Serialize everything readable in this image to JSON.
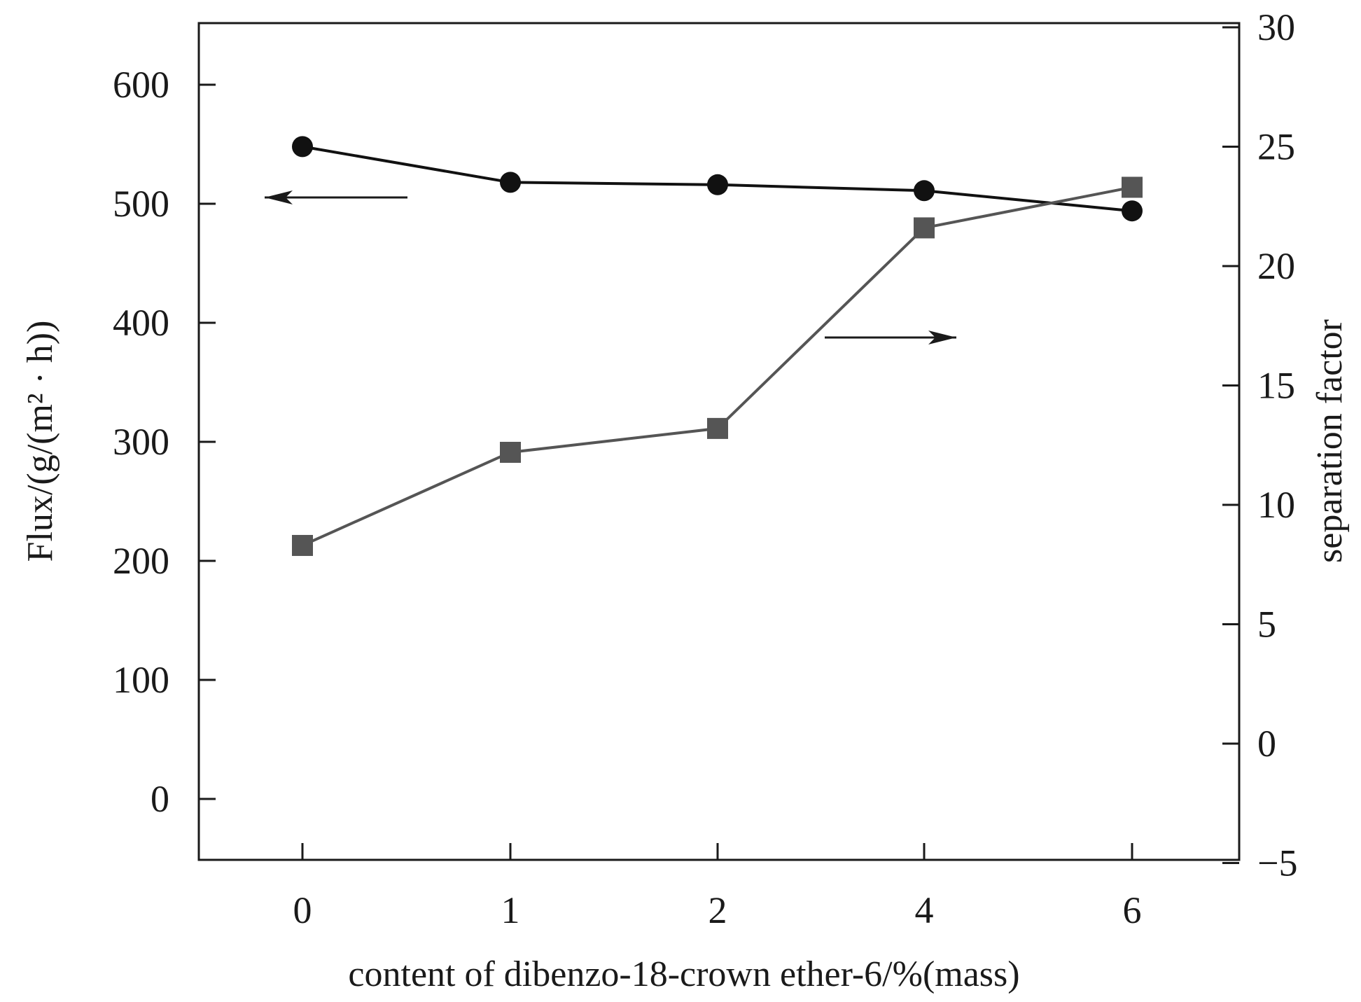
{
  "chart_data": {
    "type": "line",
    "categories": [
      "0",
      "1",
      "2",
      "4",
      "6"
    ],
    "xlabel": "content of dibenzo-18-crown ether-6/%(mass)",
    "ylabel_left": "Flux/(g/(m² · h))",
    "ylabel_right": "separation factor",
    "ylim_left": [
      -52,
      652
    ],
    "ylim_right": [
      -5,
      30
    ],
    "yticks_left": [
      0,
      100,
      200,
      300,
      400,
      500,
      600
    ],
    "yticks_right": [
      -5,
      0,
      5,
      10,
      15,
      20,
      25,
      30
    ],
    "grid": false,
    "series": [
      {
        "axis": "left",
        "marker": "circle",
        "color": "#111111",
        "values": [
          548,
          518,
          516,
          511,
          494
        ]
      },
      {
        "axis": "right",
        "marker": "square",
        "color": "#555555",
        "values": [
          8.3,
          12.2,
          13.2,
          21.6,
          23.3
        ]
      }
    ],
    "annotations": [
      {
        "type": "arrow",
        "direction": "left",
        "points_to": "left-axis",
        "series_index": 0
      },
      {
        "type": "arrow",
        "direction": "right",
        "points_to": "right-axis",
        "series_index": 1
      }
    ]
  }
}
